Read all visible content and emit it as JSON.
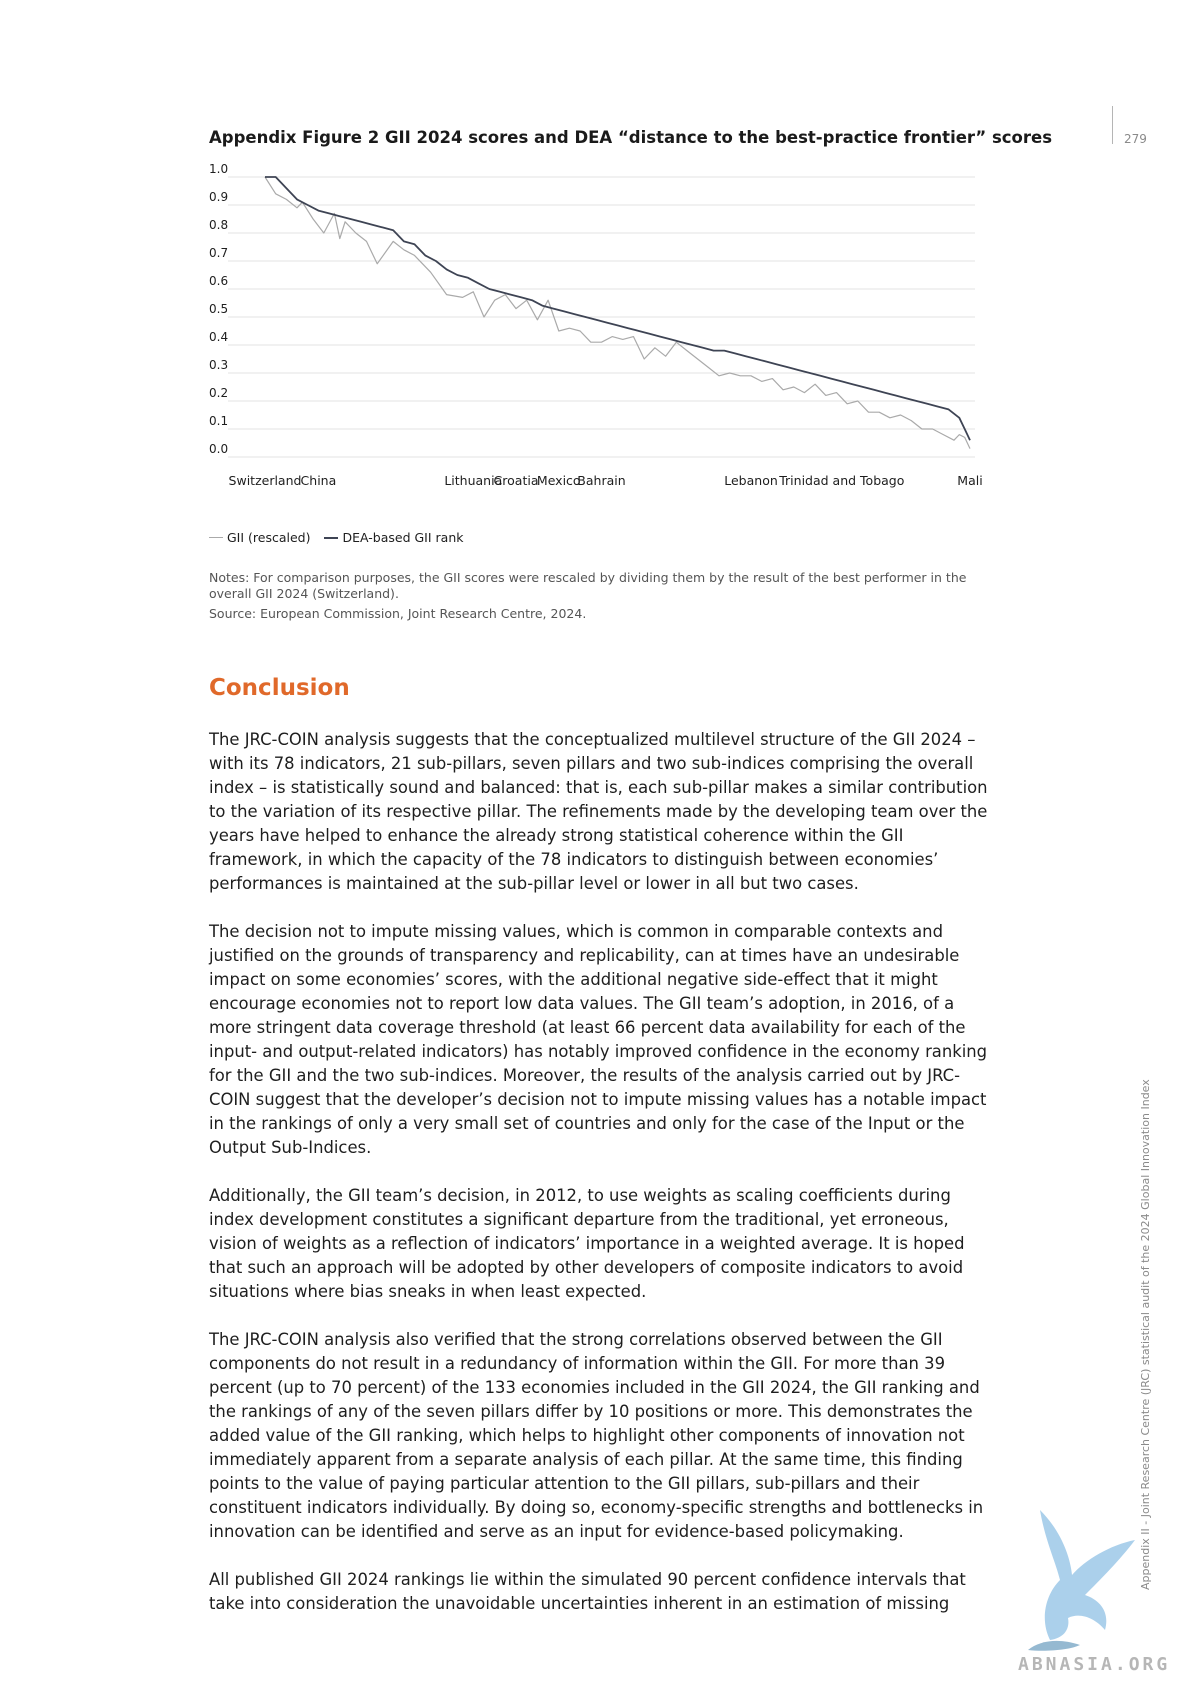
{
  "page": {
    "page_number": "279",
    "side_caption": "Appendix II - Joint Research Centre (JRC) statistical audit of the 2024 Global Innovation Index",
    "watermark": "ABNASIA.ORG"
  },
  "figure": {
    "title": "Appendix Figure 2 GII 2024 scores and DEA “distance to the best-practice frontier” scores",
    "legend": [
      {
        "label": "GII (rescaled)",
        "color": "#aaaaaa"
      },
      {
        "label": "DEA-based GII rank",
        "color": "#3e4454"
      }
    ],
    "notes": "Notes: For comparison purposes, the GII scores were rescaled by dividing them by the result of the best performer in the overall GII 2024 (Switzerland).",
    "source": "Source: European Commission, Joint Research Centre, 2024."
  },
  "chart_data": {
    "type": "line",
    "ylim": [
      0,
      1.0
    ],
    "yticks": [
      "1.0",
      "0.9",
      "0.8",
      "0.7",
      "0.6",
      "0.5",
      "0.4",
      "0.3",
      "0.2",
      "0.1",
      "0.0"
    ],
    "grid": true,
    "legend_position": "bottom-left",
    "x_labels": [
      {
        "label": "Switzerland",
        "index": 1
      },
      {
        "label": "China",
        "index": 11
      },
      {
        "label": "Lithuania",
        "index": 40
      },
      {
        "label": "Croatia",
        "index": 48
      },
      {
        "label": "Mexico",
        "index": 56
      },
      {
        "label": "Bahrain",
        "index": 64
      },
      {
        "label": "Lebanon",
        "index": 92
      },
      {
        "label": "Trinidad and Tobago",
        "index": 109
      },
      {
        "label": "Mali",
        "index": 133
      }
    ],
    "series": [
      {
        "name": "GII (rescaled)",
        "x": [
          1,
          3,
          5,
          7,
          8,
          10,
          12,
          14,
          15,
          16,
          18,
          20,
          22,
          25,
          27,
          29,
          32,
          35,
          38,
          40,
          42,
          44,
          46,
          48,
          50,
          52,
          54,
          56,
          58,
          60,
          62,
          64,
          66,
          68,
          70,
          72,
          74,
          76,
          78,
          80,
          82,
          84,
          86,
          88,
          90,
          92,
          94,
          96,
          98,
          100,
          102,
          104,
          106,
          108,
          110,
          112,
          114,
          116,
          118,
          120,
          122,
          124,
          126,
          128,
          130,
          131,
          132,
          133
        ],
        "values": [
          1.0,
          0.94,
          0.92,
          0.89,
          0.91,
          0.85,
          0.8,
          0.87,
          0.78,
          0.84,
          0.8,
          0.77,
          0.69,
          0.77,
          0.74,
          0.72,
          0.66,
          0.58,
          0.57,
          0.59,
          0.5,
          0.56,
          0.58,
          0.53,
          0.56,
          0.49,
          0.56,
          0.45,
          0.46,
          0.45,
          0.41,
          0.41,
          0.43,
          0.42,
          0.43,
          0.35,
          0.39,
          0.36,
          0.41,
          0.38,
          0.35,
          0.32,
          0.29,
          0.3,
          0.29,
          0.29,
          0.27,
          0.28,
          0.24,
          0.25,
          0.23,
          0.26,
          0.22,
          0.23,
          0.19,
          0.2,
          0.16,
          0.16,
          0.14,
          0.15,
          0.13,
          0.1,
          0.1,
          0.08,
          0.06,
          0.08,
          0.07,
          0.03
        ]
      },
      {
        "name": "DEA-based GII rank",
        "x": [
          1,
          3,
          5,
          7,
          9,
          11,
          13,
          15,
          17,
          19,
          21,
          23,
          25,
          27,
          29,
          31,
          33,
          35,
          37,
          39,
          41,
          43,
          45,
          47,
          49,
          51,
          53,
          55,
          57,
          59,
          61,
          63,
          65,
          67,
          69,
          71,
          73,
          75,
          77,
          79,
          81,
          83,
          85,
          87,
          89,
          91,
          93,
          95,
          97,
          99,
          101,
          103,
          105,
          107,
          109,
          111,
          113,
          115,
          117,
          119,
          121,
          123,
          125,
          127,
          129,
          131,
          132,
          133
        ],
        "values": [
          1.0,
          1.0,
          0.96,
          0.92,
          0.9,
          0.88,
          0.87,
          0.86,
          0.85,
          0.84,
          0.83,
          0.82,
          0.81,
          0.77,
          0.76,
          0.72,
          0.7,
          0.67,
          0.65,
          0.64,
          0.62,
          0.6,
          0.59,
          0.58,
          0.57,
          0.56,
          0.54,
          0.53,
          0.52,
          0.51,
          0.5,
          0.49,
          0.48,
          0.47,
          0.46,
          0.45,
          0.44,
          0.43,
          0.42,
          0.41,
          0.4,
          0.39,
          0.38,
          0.38,
          0.37,
          0.36,
          0.35,
          0.34,
          0.33,
          0.32,
          0.31,
          0.3,
          0.29,
          0.28,
          0.27,
          0.26,
          0.25,
          0.24,
          0.23,
          0.22,
          0.21,
          0.2,
          0.19,
          0.18,
          0.17,
          0.14,
          0.1,
          0.06
        ]
      }
    ]
  },
  "conclusion": {
    "heading": "Conclusion",
    "paragraphs": [
      "The JRC-COIN analysis suggests that the conceptualized multilevel structure of the GII 2024 – with its 78 indicators, 21 sub-pillars, seven pillars and two sub-indices comprising the overall index – is statistically sound and balanced: that is, each sub-pillar makes a similar contribution to the variation of its respective pillar. The refinements made by the developing team over the years have helped to enhance the already strong statistical coherence within the GII framework, in which the capacity of the 78 indicators to distinguish between economies’ performances is maintained at the sub-pillar level or lower in all but two cases.",
      "The decision not to impute missing values, which is common in comparable contexts and justified on the grounds of transparency and replicability, can at times have an undesirable impact on some economies’ scores, with the additional negative side-effect that it might encourage economies not to report low data values. The GII team’s adoption, in 2016, of a more stringent data coverage threshold (at least 66 percent data availability for each of the input- and output-related indicators) has notably improved confidence in the economy ranking for the GII and the two sub-indices. Moreover, the results of the analysis carried out by JRC-COIN suggest that the developer’s decision not to impute missing values has a notable impact in the rankings of only a very small set of countries and only for the case of the Input or the Output Sub-Indices.",
      "Additionally, the GII team’s decision, in 2012, to use weights as scaling coefficients during index development constitutes a significant departure from the traditional, yet erroneous, vision of weights as a reflection of indicators’ importance in a weighted average. It is hoped that such an approach will be adopted by other developers of composite indicators to avoid situations where bias sneaks in when least expected.",
      "The JRC-COIN analysis also verified that the strong correlations observed between the GII components do not result in a redundancy of information within the GII. For more than 39 percent (up to 70 percent) of the 133 economies included in the GII 2024, the GII ranking and the rankings of any of the seven pillars differ by 10 positions or more. This demonstrates the added value of the GII ranking, which helps to highlight other components of innovation not immediately apparent from a separate analysis of each pillar. At the same time, this finding points to the value of paying particular attention to the GII pillars, sub-pillars and their constituent indicators individually. By doing so, economy-specific strengths and bottlenecks in innovation can be identified and serve as an input for evidence-based policymaking.",
      "All published GII 2024 rankings lie within the simulated 90 percent confidence intervals that take into consideration the unavoidable uncertainties inherent in an estimation of missing"
    ]
  }
}
